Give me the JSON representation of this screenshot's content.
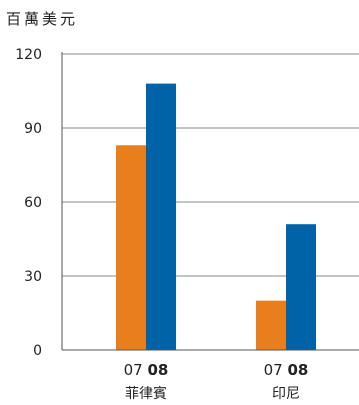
{
  "chart_data": {
    "type": "bar",
    "unit_label": "百萬美元",
    "categories": [
      "菲律賓",
      "印尼"
    ],
    "year_labels": [
      "07",
      "08"
    ],
    "series": [
      {
        "name": "07",
        "values": [
          83,
          20
        ],
        "color": "#e87e1c"
      },
      {
        "name": "08",
        "values": [
          108,
          51
        ],
        "color": "#0063a7"
      }
    ],
    "yticks": [
      "0",
      "30",
      "60",
      "90",
      "120"
    ],
    "ylim": [
      0,
      120
    ],
    "grid": true,
    "legend": "none"
  }
}
